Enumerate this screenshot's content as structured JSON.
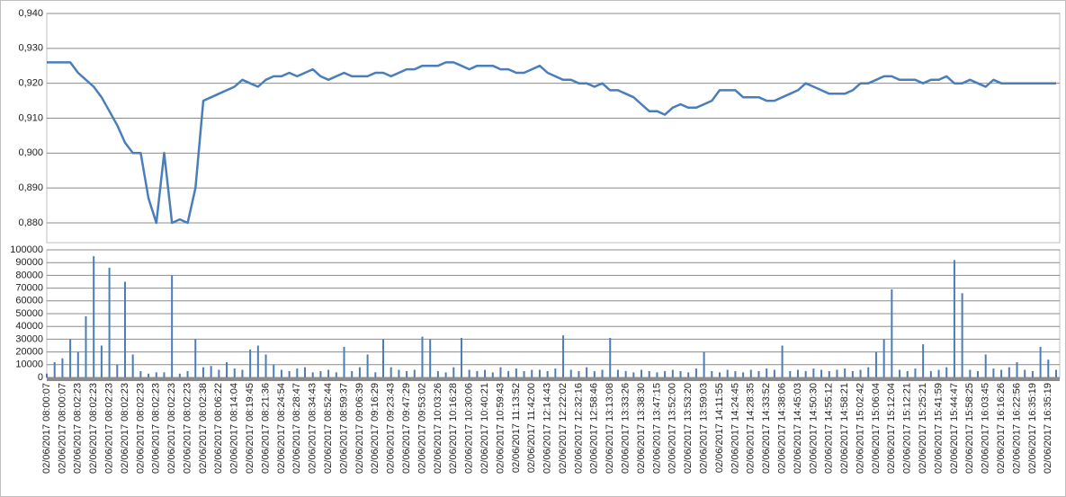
{
  "chart_data": [
    {
      "type": "line",
      "color": "#4a7ebb",
      "values": [
        0.926,
        0.926,
        0.926,
        0.926,
        0.923,
        0.921,
        0.919,
        0.916,
        0.912,
        0.908,
        0.903,
        0.9,
        0.9,
        0.887,
        0.88,
        0.9,
        0.88,
        0.881,
        0.88,
        0.89,
        0.915,
        0.916,
        0.917,
        0.918,
        0.919,
        0.921,
        0.92,
        0.919,
        0.921,
        0.922,
        0.922,
        0.923,
        0.922,
        0.923,
        0.924,
        0.922,
        0.921,
        0.922,
        0.923,
        0.922,
        0.922,
        0.922,
        0.923,
        0.923,
        0.922,
        0.923,
        0.924,
        0.924,
        0.925,
        0.925,
        0.925,
        0.926,
        0.926,
        0.925,
        0.924,
        0.925,
        0.925,
        0.925,
        0.924,
        0.924,
        0.923,
        0.923,
        0.924,
        0.925,
        0.923,
        0.922,
        0.921,
        0.921,
        0.92,
        0.92,
        0.919,
        0.92,
        0.918,
        0.918,
        0.917,
        0.916,
        0.914,
        0.912,
        0.912,
        0.911,
        0.913,
        0.914,
        0.913,
        0.913,
        0.914,
        0.915,
        0.918,
        0.918,
        0.918,
        0.916,
        0.916,
        0.916,
        0.915,
        0.915,
        0.916,
        0.917,
        0.918,
        0.92,
        0.919,
        0.918,
        0.917,
        0.917,
        0.917,
        0.918,
        0.92,
        0.92,
        0.921,
        0.922,
        0.922,
        0.921,
        0.921,
        0.921,
        0.92,
        0.921,
        0.921,
        0.922,
        0.92,
        0.92,
        0.921,
        0.92,
        0.919,
        0.921,
        0.92,
        0.92,
        0.92,
        0.92,
        0.92,
        0.92,
        0.92,
        0.92
      ],
      "ylim": [
        0.88,
        0.94
      ],
      "yticks": [
        {
          "value": 0.88,
          "label": "0,880"
        },
        {
          "value": 0.89,
          "label": "0,890"
        },
        {
          "value": 0.9,
          "label": "0,900"
        },
        {
          "value": 0.91,
          "label": "0,910"
        },
        {
          "value": 0.92,
          "label": "0,920"
        },
        {
          "value": 0.93,
          "label": "0,930"
        },
        {
          "value": 0.94,
          "label": "0,940"
        }
      ],
      "grid": true
    },
    {
      "type": "bar",
      "color": "#4a7ebb",
      "categories": [
        "02/06/2017 08:00:07",
        null,
        "02/06/2017 08:00:07",
        null,
        "02/06/2017 08:02:23",
        null,
        "02/06/2017 08:02:23",
        null,
        "02/06/2017 08:02:23",
        null,
        "02/06/2017 08:02:23",
        null,
        "02/06/2017 08:02:23",
        null,
        "02/06/2017 08:02:23",
        null,
        "02/06/2017 08:02:23",
        null,
        "02/06/2017 08:02:23",
        null,
        "02/06/2017 08:02:38",
        null,
        "02/06/2017 08:06:22",
        null,
        "02/06/2017 08:14:04",
        null,
        "02/06/2017 08:19:45",
        null,
        "02/06/2017 08:21:36",
        null,
        "02/06/2017 08:24:54",
        null,
        "02/06/2017 08:28:47",
        null,
        "02/06/2017 08:34:43",
        null,
        "02/06/2017 08:52:44",
        null,
        "02/06/2017 08:59:37",
        null,
        "02/06/2017 09:06:39",
        null,
        "02/06/2017 09:16:29",
        null,
        "02/06/2017 09:23:43",
        null,
        "02/06/2017 09:47:29",
        null,
        "02/06/2017 09:53:02",
        null,
        "02/06/2017 10:03:26",
        null,
        "02/06/2017 10:16:28",
        null,
        "02/06/2017 10:30:06",
        null,
        "02/06/2017 10:40:21",
        null,
        "02/06/2017 10:59:43",
        null,
        "02/06/2017 11:13:52",
        null,
        "02/06/2017 11:42:00",
        null,
        "02/06/2017 12:14:43",
        null,
        "02/06/2017 12:22:02",
        null,
        "02/06/2017 12:32:16",
        null,
        "02/06/2017 12:58:46",
        null,
        "02/06/2017 13:13:08",
        null,
        "02/06/2017 13:33:26",
        null,
        "02/06/2017 13:38:30",
        null,
        "02/06/2017 13:47:15",
        null,
        "02/06/2017 13:52:00",
        null,
        "02/06/2017 13:53:20",
        null,
        "02/06/2017 13:59:03",
        null,
        "02/06/2017 14:11:55",
        null,
        "02/06/2017 14:24:45",
        null,
        "02/06/2017 14:28:35",
        null,
        "02/06/2017 14:33:52",
        null,
        "02/06/2017 14:38:06",
        null,
        "02/06/2017 14:45:03",
        null,
        "02/06/2017 14:50:30",
        null,
        "02/06/2017 14:55:12",
        null,
        "02/06/2017 14:58:21",
        null,
        "02/06/2017 15:02:42",
        null,
        "02/06/2017 15:06:04",
        null,
        "02/06/2017 15:12:04",
        null,
        "02/06/2017 15:12:21",
        null,
        "02/06/2017 15:25:21",
        null,
        "02/06/2017 15:41:59",
        null,
        "02/06/2017 15:44:47",
        null,
        "02/06/2017 15:58:25",
        null,
        "02/06/2017 16:03:45",
        null,
        "02/06/2017 16:16:26",
        null,
        "02/06/2017 16:22:56",
        null,
        "02/06/2017 16:35:19",
        null,
        "02/06/2017 16:35:19",
        null
      ],
      "values": [
        3000,
        12000,
        15000,
        30000,
        20000,
        48000,
        95000,
        25000,
        86000,
        10000,
        75000,
        18000,
        5000,
        3000,
        4000,
        4000,
        80000,
        3000,
        5000,
        30000,
        8000,
        9000,
        6000,
        12000,
        7000,
        6000,
        22000,
        25000,
        18000,
        10000,
        6000,
        5000,
        7000,
        8000,
        4000,
        5000,
        6000,
        4000,
        24000,
        5000,
        8000,
        18000,
        4000,
        30000,
        8000,
        6000,
        5000,
        6000,
        32000,
        30000,
        5000,
        4000,
        8000,
        31000,
        6000,
        5000,
        6000,
        4000,
        8000,
        5000,
        7000,
        5000,
        6000,
        6000,
        5000,
        7000,
        33000,
        6000,
        5000,
        8000,
        5000,
        6000,
        31000,
        6000,
        5000,
        4000,
        6000,
        5000,
        4000,
        5000,
        6000,
        5000,
        4000,
        7000,
        20000,
        5000,
        4000,
        6000,
        5000,
        4000,
        6000,
        5000,
        7000,
        6000,
        25000,
        5000,
        6000,
        5000,
        7000,
        6000,
        5000,
        6000,
        7000,
        5000,
        6000,
        8000,
        20000,
        30000,
        69000,
        6000,
        5000,
        7000,
        26000,
        5000,
        6000,
        8000,
        92000,
        66000,
        6000,
        5000,
        18000,
        7000,
        6000,
        8000,
        12000,
        6000,
        5000,
        24000,
        14000,
        6000
      ],
      "ylim": [
        0,
        100000
      ],
      "yticks": [
        0,
        10000,
        20000,
        30000,
        40000,
        50000,
        60000,
        70000,
        80000,
        90000,
        100000
      ],
      "grid": true
    }
  ]
}
